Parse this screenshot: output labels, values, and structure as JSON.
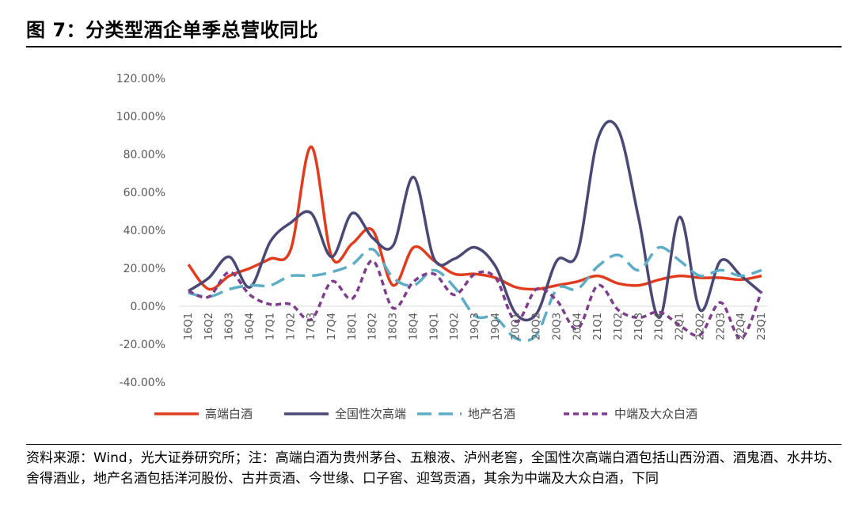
{
  "title": "图 7：分类型酒企单季总营收同比",
  "source": "资料来源：Wind，光大证券研究所；注：高端白酒为贵州茅台、五粮液、泸州老窖，全国性次高端白酒包括山西汾酒、酒鬼酒、水井坊、舍得酒业，地产名酒包括洋河股份、古井贡酒、今世缘、口子窖、迎驾贡酒，其余为中端及大众白酒，下同",
  "chart_data": {
    "type": "line",
    "title": "",
    "xlabel": "",
    "ylabel": "",
    "ylim": [
      -0.4,
      1.2
    ],
    "yticks": [
      "120.00%",
      "100.00%",
      "80.00%",
      "60.00%",
      "40.00%",
      "20.00%",
      "0.00%",
      "-20.00%",
      "-40.00%"
    ],
    "ytick_values": [
      1.2,
      1.0,
      0.8,
      0.6,
      0.4,
      0.2,
      0.0,
      -0.2,
      -0.4
    ],
    "categories": [
      "16Q1",
      "16Q2",
      "16Q3",
      "16Q4",
      "17Q1",
      "17Q2",
      "17Q3",
      "17Q4",
      "18Q1",
      "18Q2",
      "18Q3",
      "18Q4",
      "19Q1",
      "19Q2",
      "19Q3",
      "19Q4",
      "20Q1",
      "20Q2",
      "20Q3",
      "20Q4",
      "21Q1",
      "21Q2",
      "21Q3",
      "21Q4",
      "22Q1",
      "22Q2",
      "22Q3",
      "22Q4",
      "23Q1"
    ],
    "legend_position": "bottom",
    "series": [
      {
        "name": "高端白酒",
        "color": "#E03C1E",
        "dash": "solid",
        "values": [
          0.22,
          0.09,
          0.16,
          0.2,
          0.25,
          0.3,
          0.84,
          0.26,
          0.33,
          0.4,
          0.11,
          0.31,
          0.24,
          0.17,
          0.17,
          0.15,
          0.1,
          0.09,
          0.11,
          0.13,
          0.16,
          0.12,
          0.11,
          0.14,
          0.16,
          0.15,
          0.15,
          0.14,
          0.16
        ]
      },
      {
        "name": "全国性次高端",
        "color": "#4A4874",
        "dash": "solid",
        "values": [
          0.08,
          0.15,
          0.26,
          0.1,
          0.34,
          0.44,
          0.49,
          0.26,
          0.49,
          0.36,
          0.32,
          0.68,
          0.25,
          0.25,
          0.31,
          0.21,
          -0.04,
          -0.04,
          0.24,
          0.28,
          0.88,
          0.93,
          0.46,
          -0.06,
          0.47,
          -0.02,
          0.24,
          0.16,
          0.07
        ]
      },
      {
        "name": "地产名酒",
        "color": "#5EADC7",
        "dash": "dashed",
        "values": [
          0.07,
          0.05,
          0.09,
          0.11,
          0.11,
          0.16,
          0.16,
          0.18,
          0.22,
          0.3,
          0.15,
          0.11,
          0.19,
          0.1,
          -0.05,
          -0.06,
          -0.17,
          -0.15,
          0.09,
          0.09,
          0.21,
          0.27,
          0.19,
          0.31,
          0.24,
          0.16,
          0.19,
          0.16,
          0.19
        ]
      },
      {
        "name": "中端及大众白酒",
        "color": "#7E3E8C",
        "dash": "dotted",
        "values": [
          0.08,
          0.05,
          0.18,
          0.06,
          0.01,
          0.01,
          -0.07,
          0.13,
          0.04,
          0.24,
          -0.01,
          0.13,
          0.17,
          0.06,
          0.17,
          0.15,
          -0.08,
          0.09,
          0.03,
          -0.12,
          0.11,
          -0.02,
          -0.06,
          -0.03,
          -0.1,
          -0.15,
          0.02,
          -0.17,
          0.08
        ]
      }
    ]
  }
}
